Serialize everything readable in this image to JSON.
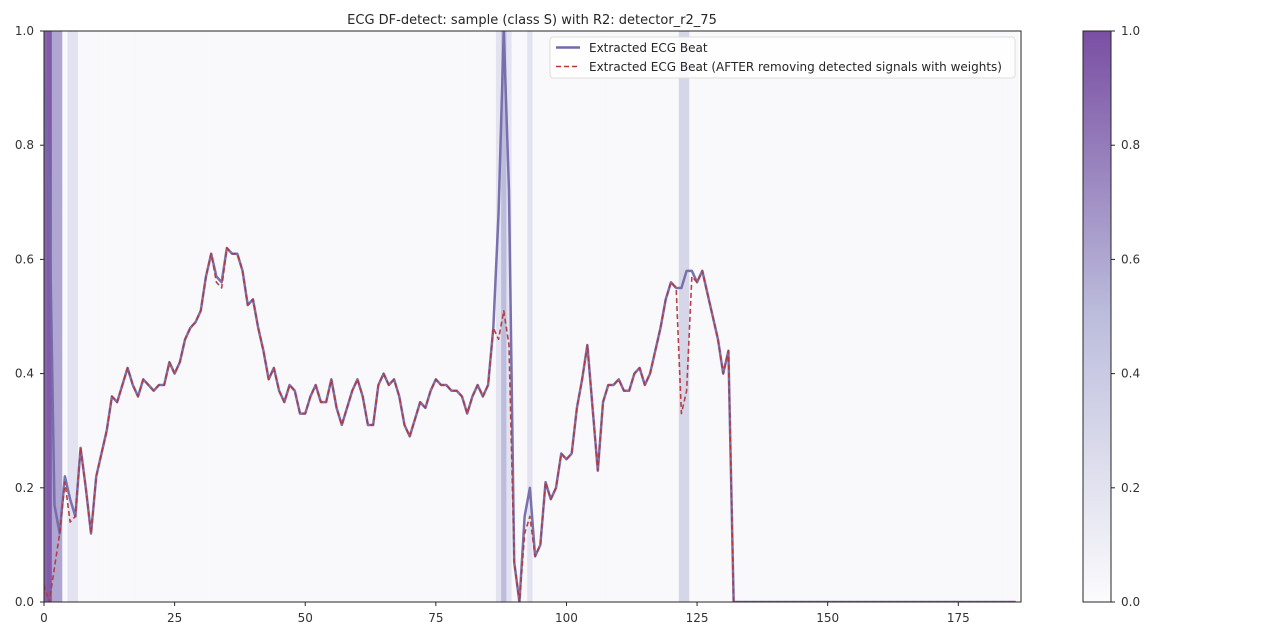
{
  "chart_data": {
    "type": "line",
    "title": "ECG DF-detect: sample (class S) with R2: detector_r2_75",
    "xlabel": "",
    "ylabel": "",
    "xlim": [
      0,
      187
    ],
    "ylim": [
      0,
      1
    ],
    "x_ticks": [
      0,
      25,
      50,
      75,
      100,
      125,
      150,
      175
    ],
    "y_ticks": [
      0.0,
      0.2,
      0.4,
      0.6,
      0.8,
      1.0
    ],
    "y_tick_labels": [
      "0.0",
      "0.2",
      "0.4",
      "0.6",
      "0.8",
      "1.0"
    ],
    "grid": false,
    "legend_position": "top-right",
    "colormap": {
      "name": "Purples",
      "low_color": "#fcfbfd",
      "mid_color": "#bcbddc",
      "high_color": "#7a4fa3",
      "range": [
        0,
        1
      ],
      "ticks": [
        0.0,
        0.2,
        0.4,
        0.6,
        0.8,
        1.0
      ],
      "tick_labels": [
        "0.0",
        "0.2",
        "0.4",
        "0.6",
        "0.8",
        "1.0"
      ]
    },
    "series": [
      {
        "name": "Extracted ECG Beat",
        "color": "#7469a8",
        "style": "solid",
        "values": [
          0.93,
          0.72,
          0.17,
          0.12,
          0.22,
          0.18,
          0.15,
          0.27,
          0.2,
          0.12,
          0.22,
          0.26,
          0.3,
          0.36,
          0.35,
          0.38,
          0.41,
          0.38,
          0.36,
          0.39,
          0.38,
          0.37,
          0.38,
          0.38,
          0.42,
          0.4,
          0.42,
          0.46,
          0.48,
          0.49,
          0.51,
          0.57,
          0.61,
          0.57,
          0.56,
          0.62,
          0.61,
          0.61,
          0.58,
          0.52,
          0.53,
          0.48,
          0.44,
          0.39,
          0.41,
          0.37,
          0.35,
          0.38,
          0.37,
          0.33,
          0.33,
          0.36,
          0.38,
          0.35,
          0.35,
          0.39,
          0.34,
          0.31,
          0.34,
          0.37,
          0.39,
          0.36,
          0.31,
          0.31,
          0.38,
          0.4,
          0.38,
          0.39,
          0.36,
          0.31,
          0.29,
          0.32,
          0.35,
          0.34,
          0.37,
          0.39,
          0.38,
          0.38,
          0.37,
          0.37,
          0.36,
          0.33,
          0.36,
          0.38,
          0.36,
          0.38,
          0.48,
          0.68,
          1.0,
          0.72,
          0.07,
          0.0,
          0.15,
          0.2,
          0.08,
          0.1,
          0.21,
          0.18,
          0.2,
          0.26,
          0.25,
          0.26,
          0.34,
          0.39,
          0.45,
          0.34,
          0.23,
          0.35,
          0.38,
          0.38,
          0.39,
          0.37,
          0.37,
          0.4,
          0.41,
          0.38,
          0.4,
          0.44,
          0.48,
          0.53,
          0.56,
          0.55,
          0.55,
          0.58,
          0.58,
          0.56,
          0.58,
          0.54,
          0.5,
          0.46,
          0.4,
          0.44,
          0.0,
          0.0,
          0.0,
          0.0,
          0.0,
          0.0,
          0.0,
          0.0,
          0.0,
          0.0,
          0.0,
          0.0,
          0.0,
          0.0,
          0.0,
          0.0,
          0.0,
          0.0,
          0.0,
          0.0,
          0.0,
          0.0,
          0.0,
          0.0,
          0.0,
          0.0,
          0.0,
          0.0,
          0.0,
          0.0,
          0.0,
          0.0,
          0.0,
          0.0,
          0.0,
          0.0,
          0.0,
          0.0,
          0.0,
          0.0,
          0.0,
          0.0,
          0.0,
          0.0,
          0.0,
          0.0,
          0.0,
          0.0,
          0.0,
          0.0,
          0.0,
          0.0,
          0.0,
          0.0,
          0.0
        ]
      },
      {
        "name": "Extracted ECG Beat (AFTER removing detected signals with weights)",
        "color": "#b5383c",
        "style": "dashed",
        "values": [
          0.03,
          0.0,
          0.06,
          0.12,
          0.21,
          0.14,
          0.15,
          0.27,
          0.2,
          0.12,
          0.22,
          0.26,
          0.3,
          0.36,
          0.35,
          0.38,
          0.41,
          0.38,
          0.36,
          0.39,
          0.38,
          0.37,
          0.38,
          0.38,
          0.42,
          0.4,
          0.42,
          0.46,
          0.48,
          0.49,
          0.51,
          0.57,
          0.61,
          0.56,
          0.55,
          0.62,
          0.61,
          0.61,
          0.58,
          0.52,
          0.53,
          0.48,
          0.44,
          0.39,
          0.41,
          0.37,
          0.35,
          0.38,
          0.37,
          0.33,
          0.33,
          0.36,
          0.38,
          0.35,
          0.35,
          0.39,
          0.34,
          0.31,
          0.34,
          0.37,
          0.39,
          0.36,
          0.31,
          0.31,
          0.38,
          0.4,
          0.38,
          0.39,
          0.36,
          0.31,
          0.29,
          0.32,
          0.35,
          0.34,
          0.37,
          0.39,
          0.38,
          0.38,
          0.37,
          0.37,
          0.36,
          0.33,
          0.36,
          0.38,
          0.36,
          0.38,
          0.48,
          0.46,
          0.51,
          0.45,
          0.07,
          0.0,
          0.12,
          0.15,
          0.08,
          0.1,
          0.21,
          0.18,
          0.2,
          0.26,
          0.25,
          0.26,
          0.34,
          0.39,
          0.45,
          0.34,
          0.23,
          0.35,
          0.38,
          0.38,
          0.39,
          0.37,
          0.37,
          0.4,
          0.41,
          0.38,
          0.4,
          0.44,
          0.48,
          0.53,
          0.56,
          0.55,
          0.33,
          0.37,
          0.57,
          0.56,
          0.58,
          0.54,
          0.5,
          0.46,
          0.4,
          0.44,
          0.0,
          0.0,
          0.0,
          0.0,
          0.0,
          0.0,
          0.0,
          0.0,
          0.0,
          0.0,
          0.0,
          0.0,
          0.0,
          0.0,
          0.0,
          0.0,
          0.0,
          0.0,
          0.0,
          0.0,
          0.0,
          0.0,
          0.0,
          0.0,
          0.0,
          0.0,
          0.0,
          0.0,
          0.0,
          0.0,
          0.0,
          0.0,
          0.0,
          0.0,
          0.0,
          0.0,
          0.0,
          0.0,
          0.0,
          0.0,
          0.0,
          0.0,
          0.0,
          0.0,
          0.0,
          0.0,
          0.0,
          0.0,
          0.0,
          0.0,
          0.0,
          0.0,
          0.0,
          0.0,
          0.0
        ]
      }
    ],
    "weights": [
      0.9,
      0.95,
      0.6,
      0.6,
      0.02,
      0.2,
      0.2,
      0.02,
      0.02,
      0.02,
      0.02,
      0.02,
      0.02,
      0.02,
      0.02,
      0.02,
      0.02,
      0.02,
      0.02,
      0.02,
      0.02,
      0.02,
      0.02,
      0.02,
      0.02,
      0.02,
      0.02,
      0.02,
      0.02,
      0.02,
      0.02,
      0.02,
      0.02,
      0.02,
      0.02,
      0.02,
      0.02,
      0.02,
      0.02,
      0.02,
      0.02,
      0.02,
      0.02,
      0.02,
      0.02,
      0.02,
      0.02,
      0.02,
      0.02,
      0.02,
      0.02,
      0.02,
      0.02,
      0.02,
      0.02,
      0.02,
      0.02,
      0.02,
      0.02,
      0.02,
      0.02,
      0.02,
      0.02,
      0.02,
      0.02,
      0.02,
      0.02,
      0.02,
      0.02,
      0.02,
      0.02,
      0.02,
      0.02,
      0.02,
      0.02,
      0.02,
      0.02,
      0.02,
      0.02,
      0.02,
      0.02,
      0.02,
      0.02,
      0.02,
      0.02,
      0.02,
      0.02,
      0.2,
      0.5,
      0.2,
      0.02,
      0.02,
      0.02,
      0.2,
      0.02,
      0.02,
      0.02,
      0.02,
      0.02,
      0.02,
      0.02,
      0.02,
      0.02,
      0.02,
      0.02,
      0.02,
      0.02,
      0.02,
      0.02,
      0.02,
      0.02,
      0.02,
      0.02,
      0.02,
      0.02,
      0.02,
      0.02,
      0.02,
      0.02,
      0.02,
      0.02,
      0.02,
      0.3,
      0.3,
      0.02,
      0.02,
      0.02,
      0.02,
      0.02,
      0.02,
      0.02,
      0.02,
      0.02,
      0.02,
      0.02,
      0.02,
      0.02,
      0.02,
      0.02,
      0.02,
      0.02,
      0.02,
      0.02,
      0.02,
      0.02,
      0.02,
      0.02,
      0.02,
      0.02,
      0.02,
      0.02,
      0.02,
      0.02,
      0.02,
      0.02,
      0.02,
      0.02,
      0.02,
      0.02,
      0.02,
      0.02,
      0.02,
      0.02,
      0.02,
      0.02,
      0.02,
      0.02,
      0.02,
      0.02,
      0.02,
      0.02,
      0.02,
      0.02,
      0.02,
      0.02,
      0.02,
      0.02,
      0.02,
      0.02,
      0.02,
      0.02,
      0.02,
      0.02,
      0.02,
      0.02,
      0.02,
      0.02
    ]
  }
}
